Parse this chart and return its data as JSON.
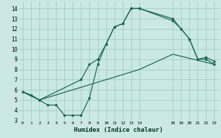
{
  "title": "",
  "xlabel": "Humidex (Indice chaleur)",
  "bg_color": "#cce8e4",
  "grid_color": "#99cccc",
  "line_color": "#1a6655",
  "xlim": [
    -0.5,
    23.5
  ],
  "ylim": [
    3,
    14.6
  ],
  "xtick_positions": [
    0,
    1,
    2,
    3,
    4,
    5,
    6,
    7,
    8,
    9,
    10,
    11,
    12,
    13,
    14,
    18,
    19,
    20,
    21,
    22,
    23
  ],
  "xtick_labels": [
    "0",
    "1",
    "2",
    "3",
    "4",
    "5",
    "6",
    "7",
    "8",
    "9",
    "10",
    "11",
    "12",
    "13",
    "14",
    "18",
    "19",
    "20",
    "21",
    "22",
    "23"
  ],
  "ytick_positions": [
    3,
    4,
    5,
    6,
    7,
    8,
    9,
    10,
    11,
    12,
    13,
    14
  ],
  "ytick_labels": [
    "3",
    "4",
    "5",
    "6",
    "7",
    "8",
    "9",
    "10",
    "11",
    "12",
    "13",
    "14"
  ],
  "line1_x": [
    0,
    1,
    2,
    3,
    4,
    5,
    6,
    7,
    8,
    9,
    10,
    11,
    12,
    13,
    14,
    18,
    19,
    20,
    21,
    22,
    23
  ],
  "line1_y": [
    5.8,
    5.5,
    5.0,
    4.5,
    4.5,
    3.5,
    3.5,
    3.5,
    5.2,
    8.5,
    10.5,
    12.2,
    12.5,
    14.0,
    14.0,
    13.0,
    12.0,
    11.0,
    9.0,
    9.0,
    8.5
  ],
  "line2_x": [
    0,
    2,
    7,
    8,
    9,
    10,
    11,
    12,
    13,
    14,
    18,
    19,
    20,
    21,
    22,
    23
  ],
  "line2_y": [
    5.8,
    5.0,
    7.0,
    8.5,
    9.0,
    10.5,
    12.2,
    12.5,
    14.0,
    14.0,
    12.8,
    12.0,
    11.0,
    9.0,
    9.2,
    8.8
  ],
  "line3_x": [
    0,
    2,
    14,
    18,
    23
  ],
  "line3_y": [
    5.8,
    5.0,
    8.0,
    9.5,
    8.5
  ]
}
